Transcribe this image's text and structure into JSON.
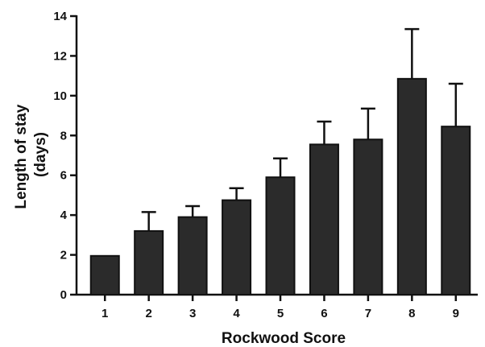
{
  "chart_data": {
    "type": "bar",
    "xlabel": "Rockwood Score",
    "ylabel_line1": "Length of stay",
    "ylabel_line2": "(days)",
    "categories": [
      "1",
      "2",
      "3",
      "4",
      "5",
      "6",
      "7",
      "8",
      "9"
    ],
    "values": [
      1.95,
      3.2,
      3.9,
      4.75,
      5.9,
      7.55,
      7.8,
      10.85,
      8.45
    ],
    "error_upper": [
      1.95,
      4.15,
      4.45,
      5.35,
      6.85,
      8.7,
      9.35,
      13.35,
      10.6
    ],
    "ylim": [
      0,
      14
    ],
    "yticks": [
      0,
      2,
      4,
      6,
      8,
      10,
      12,
      14
    ],
    "colors": {
      "bar": "#2b2b2b",
      "axis": "#111111"
    },
    "grid": false,
    "legend": "none"
  }
}
